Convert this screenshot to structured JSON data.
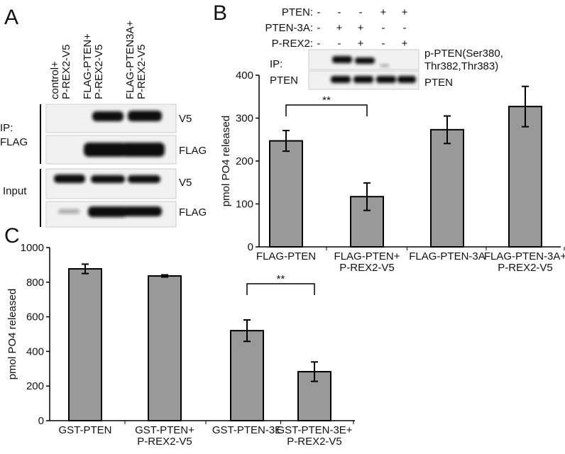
{
  "panel_a": {
    "label": "A",
    "lanes": [
      "control+\nP-REX2-V5",
      "FLAG-PTEN+\nP-REX2-V5",
      "FLAG-PTEN3A+\nP-REX2-V5"
    ],
    "groups": [
      "IP:\nFLAG",
      "Input"
    ],
    "band_labels": [
      "V5",
      "FLAG",
      "V5",
      "FLAG"
    ]
  },
  "panel_b_blot": {
    "rows": [
      {
        "name": "PTEN:",
        "signs": [
          "-",
          "-",
          "-",
          "+",
          "+"
        ]
      },
      {
        "name": "PTEN-3A:",
        "signs": [
          "-",
          "+",
          "+",
          "-",
          "-"
        ]
      },
      {
        "name": "P-REX2:",
        "signs": [
          "-",
          "-",
          "+",
          "-",
          "+"
        ]
      }
    ],
    "left_labels": [
      "IP:",
      "PTEN"
    ],
    "right_labels": [
      "p-PTEN(Ser380,\nThr382,Thr383)",
      "PTEN"
    ]
  },
  "chart_data": [
    {
      "type": "bar",
      "panel_label": "B",
      "y_label": "pmol PO4 released",
      "categories": [
        "FLAG-PTEN",
        "FLAG-PTEN+\nP-REX2-V5",
        "FLAG-PTEN-3A",
        "FLAG-PTEN-3A+\nP-REX2-V5"
      ],
      "values": [
        247,
        117,
        273,
        327
      ],
      "errors": [
        24,
        32,
        32,
        47
      ],
      "color": "#999999",
      "ylim": [
        0,
        400
      ],
      "yticks": [
        0,
        100,
        200,
        300,
        400
      ],
      "annotations": [
        "**"
      ]
    },
    {
      "type": "bar",
      "panel_label": "C",
      "y_label": "pmol PO4 released",
      "categories": [
        "GST-PTEN",
        "GST-PTEN+\nP-REX2-V5",
        "GST-PTEN-3E",
        "GST-PTEN-3E+\nP-REX2-V5"
      ],
      "values": [
        877,
        836,
        520,
        283
      ],
      "errors": [
        27,
        6,
        62,
        56
      ],
      "color": "#999999",
      "ylim": [
        0,
        1000
      ],
      "yticks": [
        0,
        200,
        400,
        600,
        800,
        1000
      ],
      "annotations": [
        "**"
      ]
    }
  ]
}
